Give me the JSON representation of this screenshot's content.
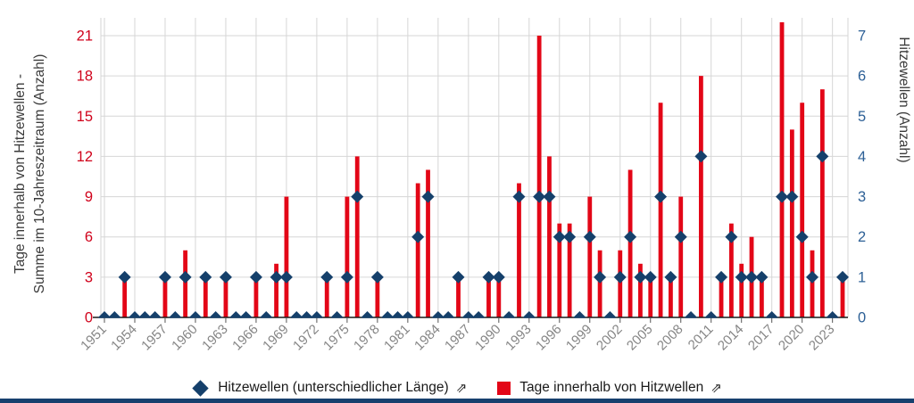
{
  "chart_data": {
    "type": "bar",
    "title": "",
    "year_range": [
      1951,
      2024
    ],
    "series": [
      {
        "name": "Tage innerhalb von Hitzwellen",
        "type": "bar",
        "axis": "left",
        "color": "#e30617",
        "values": [
          0,
          0,
          3,
          0,
          0,
          0,
          3,
          0,
          5,
          0,
          3,
          0,
          3,
          0,
          0,
          3,
          0,
          4,
          9,
          0,
          0,
          0,
          3,
          0,
          9,
          12,
          0,
          3,
          0,
          0,
          0,
          10,
          11,
          0,
          0,
          3,
          0,
          0,
          3,
          3,
          0,
          10,
          0,
          21,
          12,
          7,
          7,
          0,
          9,
          5,
          0,
          5,
          11,
          4,
          3,
          16,
          3,
          9,
          0,
          18,
          0,
          3,
          7,
          4,
          6,
          3,
          0,
          22,
          14,
          16,
          5,
          17,
          0,
          3
        ]
      },
      {
        "name": "Hitzewellen (unterschiedlicher Länge)",
        "type": "diamond",
        "axis": "right",
        "color": "#15406b",
        "values": [
          0,
          0,
          1,
          0,
          0,
          0,
          1,
          0,
          1,
          0,
          1,
          0,
          1,
          0,
          0,
          1,
          0,
          1,
          1,
          0,
          0,
          0,
          1,
          0,
          1,
          3,
          0,
          1,
          0,
          0,
          0,
          2,
          3,
          0,
          0,
          1,
          0,
          0,
          1,
          1,
          0,
          3,
          0,
          3,
          3,
          2,
          2,
          0,
          2,
          1,
          0,
          1,
          2,
          1,
          1,
          3,
          1,
          2,
          0,
          4,
          0,
          1,
          2,
          1,
          1,
          1,
          0,
          3,
          3,
          2,
          1,
          4,
          0,
          1
        ]
      }
    ],
    "left_axis": {
      "title": "Tage innerhalb von Hitzewellen - Summe im 10-Jahreszeitraum (Anzahl)",
      "title_lines": [
        "Tage innerhalb von Hitzewellen -",
        "Summe im 10-Jahreszeitraum (Anzahl)"
      ],
      "ticks": [
        0,
        3,
        6,
        9,
        12,
        15,
        18,
        21
      ],
      "range": [
        0,
        22.3
      ],
      "tick_color": "#d0021b"
    },
    "right_axis": {
      "title": "Hitzewellen (Anzahl)",
      "ticks": [
        0,
        1,
        2,
        3,
        4,
        5,
        6,
        7
      ],
      "range": [
        0,
        7.44
      ],
      "tick_color": "#2d6096"
    },
    "x_axis": {
      "tick_years": [
        1951,
        1954,
        1957,
        1960,
        1963,
        1966,
        1969,
        1972,
        1975,
        1978,
        1981,
        1984,
        1987,
        1990,
        1993,
        1996,
        1999,
        2002,
        2005,
        2008,
        2011,
        2014,
        2017,
        2020,
        2023
      ],
      "tick_labels": [
        "1951",
        "1954",
        "1957",
        "1960",
        "1963",
        "1966",
        "1969",
        "1972",
        "1975",
        "1978",
        "1981",
        "1984",
        "1987",
        "1990",
        "1993",
        "1996",
        "1999",
        "2002",
        "2005",
        "2008",
        "2011",
        "2014",
        "2017",
        "2020",
        "2023"
      ],
      "label_color": "#858585"
    },
    "grid": true,
    "legend_position": "bottom"
  },
  "legend": {
    "items": [
      {
        "label": "Hitzewellen (unterschiedlicher Länge)",
        "arrow": "⇗",
        "swatch": "diamond",
        "color": "#15406b"
      },
      {
        "label": "Tage innerhalb von Hitzwellen",
        "arrow": "⇗",
        "swatch": "square",
        "color": "#e30617"
      }
    ]
  },
  "footer": {
    "bar_color": "#17406e"
  },
  "style_colors": {
    "grid": "#d6d6d6",
    "axis_line": "#1a1a1a",
    "axis_title": "#3a3a3a"
  }
}
